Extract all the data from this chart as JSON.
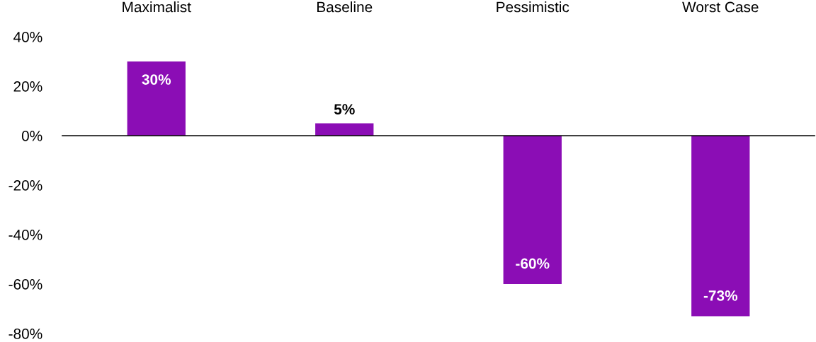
{
  "chart_data": {
    "type": "bar",
    "categories": [
      "Maximalist",
      "Baseline",
      "Pessimistic",
      "Worst Case"
    ],
    "values": [
      30,
      5,
      -60,
      -73
    ],
    "value_labels": [
      "30%",
      "5%",
      "-60%",
      "-73%"
    ],
    "color": "#8b0db5",
    "ylim": [
      -80,
      40
    ],
    "yticks": [
      {
        "value": 40,
        "label": "40%"
      },
      {
        "value": 20,
        "label": "20%"
      },
      {
        "value": 0,
        "label": "0%"
      },
      {
        "value": -20,
        "label": "-20%"
      },
      {
        "value": -40,
        "label": "-40%"
      },
      {
        "value": -60,
        "label": "-60%"
      },
      {
        "value": -80,
        "label": "-80%"
      }
    ]
  }
}
